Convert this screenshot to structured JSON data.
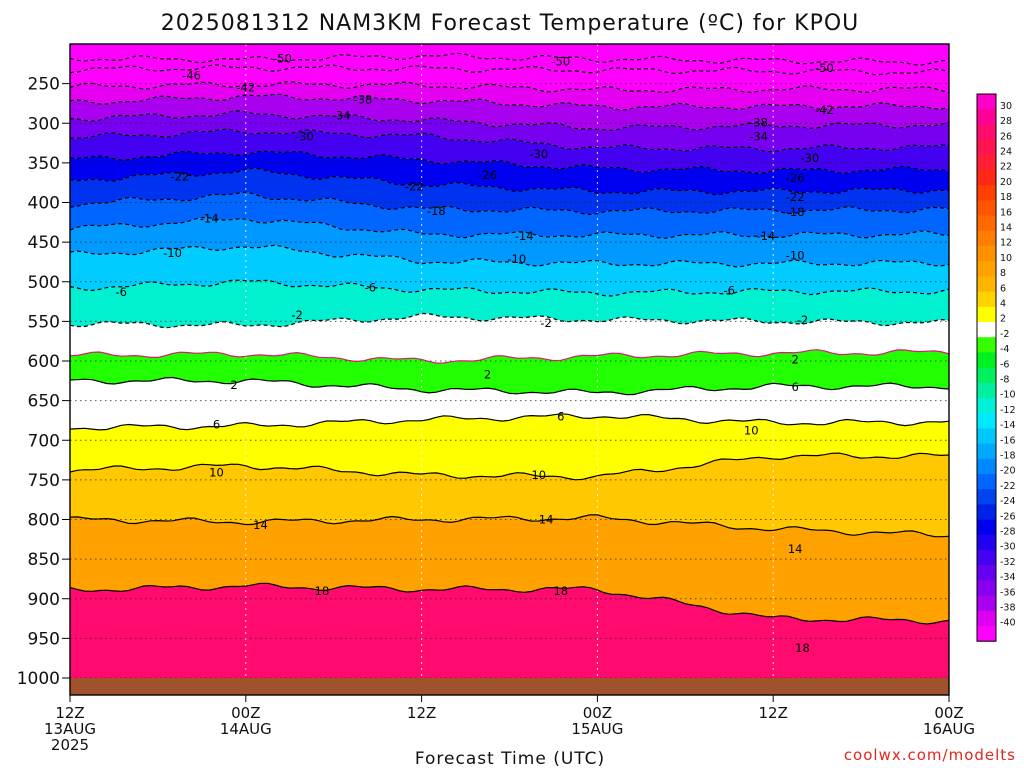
{
  "chart_data": {
    "type": "heatmap",
    "title": "2025081312 NAM3KM Forecast Temperature (ºC) for KPOU",
    "xlabel": "Forecast Time (UTC)",
    "credit": "coolwx.com/modelts",
    "x_ticks": [
      {
        "lines": [
          "12Z",
          "13AUG",
          "2025"
        ]
      },
      {
        "lines": [
          "00Z",
          "14AUG"
        ]
      },
      {
        "lines": [
          "12Z"
        ]
      },
      {
        "lines": [
          "00Z",
          "15AUG"
        ]
      },
      {
        "lines": [
          "12Z"
        ]
      },
      {
        "lines": [
          "00Z",
          "16AUG"
        ]
      }
    ],
    "x_hours": [
      0,
      12,
      24,
      36,
      48,
      60
    ],
    "xlim_hours": [
      0,
      60
    ],
    "y_ticks": [
      250,
      300,
      350,
      400,
      450,
      500,
      550,
      600,
      650,
      700,
      750,
      800,
      850,
      900,
      950,
      1000
    ],
    "ylim_hPa": [
      200,
      1000
    ],
    "y_axis": "pressure (hPa), top 200 to surface 1000",
    "grid": true,
    "colorbar": {
      "labels": [
        "30",
        "28",
        "26",
        "24",
        "22",
        "20",
        "18",
        "16",
        "14",
        "12",
        "10",
        "8",
        "6",
        "4",
        "2",
        "-2",
        "-4",
        "-6",
        "-8",
        "-10",
        "-12",
        "-14",
        "-16",
        "-18",
        "-20",
        "-22",
        "-24",
        "-26",
        "-28",
        "-30",
        "-32",
        "-34",
        "-36",
        "-38",
        "-40"
      ],
      "colors": [
        "#ff00c8",
        "#ff0096",
        "#ff0a6e",
        "#ff1450",
        "#ff1e32",
        "#ff2814",
        "#ff4000",
        "#ff5500",
        "#ff6a00",
        "#ff7d00",
        "#ff9000",
        "#ffa200",
        "#ffb400",
        "#ffd200",
        "#ffff00",
        "#ffffff",
        "#33ff00",
        "#00f020",
        "#00f060",
        "#00f0a0",
        "#00f0d8",
        "#00e8ff",
        "#00c8ff",
        "#00a8ff",
        "#0088ff",
        "#0066ff",
        "#0044f0",
        "#0022e8",
        "#0000f0",
        "#2200f0",
        "#4400f0",
        "#6600f0",
        "#8800f0",
        "#aa00f0",
        "#dd00f0",
        "#ff00ff"
      ]
    },
    "isotherms": [
      {
        "value": "-50",
        "levels_hPa": [
          218,
          220,
          215,
          219,
          221,
          223
        ]
      },
      {
        "value": "-46",
        "levels_hPa": [
          232,
          230,
          231,
          233,
          234,
          236
        ]
      },
      {
        "value": "-42",
        "levels_hPa": [
          254,
          251,
          252,
          258,
          257,
          257
        ]
      },
      {
        "value": "-38",
        "levels_hPa": [
          274,
          266,
          271,
          279,
          279,
          278
        ]
      },
      {
        "value": "-34",
        "levels_hPa": [
          294,
          288,
          296,
          306,
          303,
          302
        ]
      },
      {
        "value": "-30",
        "levels_hPa": [
          318,
          310,
          316,
          331,
          332,
          330
        ]
      },
      {
        "value": "-26",
        "levels_hPa": [
          346,
          336,
          346,
          357,
          360,
          358
        ]
      },
      {
        "value": "-22",
        "levels_hPa": [
          372,
          360,
          377,
          386,
          386,
          384
        ]
      },
      {
        "value": "-18",
        "levels_hPa": [
          402,
          390,
          408,
          411,
          410,
          409
        ]
      },
      {
        "value": "-14",
        "levels_hPa": [
          433,
          420,
          440,
          441,
          441,
          440
        ]
      },
      {
        "value": "-10",
        "levels_hPa": [
          466,
          455,
          474,
          477,
          477,
          476
        ]
      },
      {
        "value": "-6",
        "levels_hPa": [
          508,
          500,
          510,
          514,
          512,
          512
        ]
      },
      {
        "value": "-2",
        "levels_hPa": [
          553,
          555,
          544,
          548,
          550,
          552
        ]
      },
      {
        "value": "2",
        "levels_hPa": [
          593,
          591,
          600,
          594,
          590,
          589
        ]
      },
      {
        "value": "2",
        "levels_hPa": [
          625,
          625,
          636,
          640,
          632,
          632
        ]
      },
      {
        "value": "6",
        "levels_hPa": [
          684,
          682,
          674,
          669,
          678,
          677
        ]
      },
      {
        "value": "10",
        "levels_hPa": [
          738,
          732,
          744,
          746,
          720,
          720
        ]
      },
      {
        "value": "14",
        "levels_hPa": [
          800,
          803,
          800,
          798,
          812,
          820
        ]
      },
      {
        "value": "18",
        "levels_hPa": [
          889,
          884,
          888,
          888,
          925,
          928
        ]
      }
    ],
    "contour_labels": [
      {
        "text": "-50",
        "h": 14.5,
        "p": 218
      },
      {
        "text": "-50",
        "h": 33.5,
        "p": 222
      },
      {
        "text": "-50",
        "h": 51.5,
        "p": 230
      },
      {
        "text": "-46",
        "h": 8.3,
        "p": 240
      },
      {
        "text": "-42",
        "h": 12,
        "p": 255
      },
      {
        "text": "-42",
        "h": 51.5,
        "p": 283
      },
      {
        "text": "-38",
        "h": 20,
        "p": 270
      },
      {
        "text": "-38",
        "h": 47,
        "p": 299
      },
      {
        "text": "-34",
        "h": 18.5,
        "p": 290
      },
      {
        "text": "-34",
        "h": 47,
        "p": 317
      },
      {
        "text": "-30",
        "h": 16,
        "p": 317
      },
      {
        "text": "-30",
        "h": 32,
        "p": 339
      },
      {
        "text": "-30",
        "h": 50.5,
        "p": 344
      },
      {
        "text": "-26",
        "h": 28.5,
        "p": 365
      },
      {
        "text": "-26",
        "h": 49.5,
        "p": 369
      },
      {
        "text": "-22",
        "h": 7.5,
        "p": 367
      },
      {
        "text": "-22",
        "h": 23.5,
        "p": 380
      },
      {
        "text": "-22",
        "h": 49.5,
        "p": 393
      },
      {
        "text": "-18",
        "h": 25,
        "p": 411
      },
      {
        "text": "-18",
        "h": 49.5,
        "p": 412
      },
      {
        "text": "-14",
        "h": 9.5,
        "p": 420
      },
      {
        "text": "-14",
        "h": 31,
        "p": 442
      },
      {
        "text": "-14",
        "h": 47.5,
        "p": 442
      },
      {
        "text": "-10",
        "h": 7,
        "p": 464
      },
      {
        "text": "-10",
        "h": 30.5,
        "p": 471
      },
      {
        "text": "-10",
        "h": 49.5,
        "p": 467
      },
      {
        "text": "-6",
        "h": 3.5,
        "p": 513
      },
      {
        "text": "-6",
        "h": 20.5,
        "p": 507
      },
      {
        "text": "-6",
        "h": 45,
        "p": 511
      },
      {
        "text": "-2",
        "h": 15.5,
        "p": 542
      },
      {
        "text": "-2",
        "h": 32.5,
        "p": 552
      },
      {
        "text": "-2",
        "h": 50,
        "p": 548
      },
      {
        "text": "2",
        "h": 11.2,
        "p": 630
      },
      {
        "text": "2",
        "h": 28.5,
        "p": 617
      },
      {
        "text": "2",
        "h": 49.5,
        "p": 598
      },
      {
        "text": "6",
        "h": 10,
        "p": 680
      },
      {
        "text": "6",
        "h": 33.5,
        "p": 670
      },
      {
        "text": "6",
        "h": 49.5,
        "p": 633
      },
      {
        "text": "10",
        "h": 10,
        "p": 741
      },
      {
        "text": "10",
        "h": 32,
        "p": 744
      },
      {
        "text": "10",
        "h": 46.5,
        "p": 688
      },
      {
        "text": "14",
        "h": 13,
        "p": 807
      },
      {
        "text": "14",
        "h": 32.5,
        "p": 800
      },
      {
        "text": "14",
        "h": 49.5,
        "p": 837
      },
      {
        "text": "18",
        "h": 17.2,
        "p": 890
      },
      {
        "text": "18",
        "h": 33.5,
        "p": 890
      },
      {
        "text": "18",
        "h": 50,
        "p": 962
      }
    ]
  }
}
